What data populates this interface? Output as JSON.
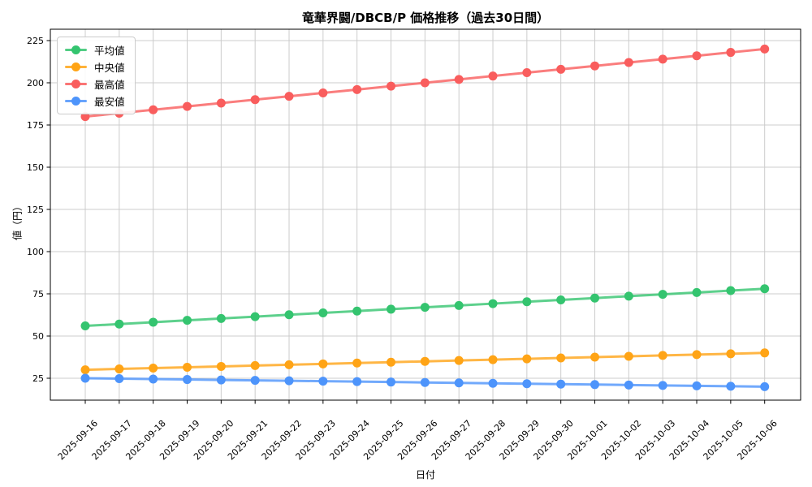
{
  "chart_data": {
    "type": "line",
    "title": "竜華界闘/DBCB/P 価格推移（過去30日間）",
    "xlabel": "日付",
    "ylabel": "値（円）",
    "grid": true,
    "legend_position": "upper-left",
    "axis_color": "#000000",
    "grid_color": "#cccccc",
    "background": "#ffffff",
    "y_ticks": [
      25,
      50,
      75,
      100,
      125,
      150,
      175,
      200,
      225
    ],
    "ylim": [
      12,
      232
    ],
    "x": [
      "2025-09-16",
      "2025-09-17",
      "2025-09-18",
      "2025-09-19",
      "2025-09-20",
      "2025-09-21",
      "2025-09-22",
      "2025-09-23",
      "2025-09-24",
      "2025-09-25",
      "2025-09-26",
      "2025-09-27",
      "2025-09-28",
      "2025-09-29",
      "2025-09-30",
      "2025-10-01",
      "2025-10-02",
      "2025-10-03",
      "2025-10-04",
      "2025-10-05",
      "2025-10-06"
    ],
    "series": [
      {
        "key": "avg",
        "name": "平均値",
        "color": "#34c46f",
        "values": [
          56.0,
          57.1,
          58.2,
          59.3,
          60.4,
          61.5,
          62.6,
          63.7,
          64.8,
          65.9,
          67.0,
          68.1,
          69.2,
          70.3,
          71.4,
          72.5,
          73.6,
          74.7,
          75.8,
          76.9,
          78.0
        ]
      },
      {
        "key": "median",
        "name": "中央値",
        "color": "#ffa416",
        "values": [
          30.0,
          30.5,
          31.0,
          31.5,
          32.0,
          32.5,
          33.0,
          33.5,
          34.0,
          34.5,
          35.0,
          35.5,
          36.0,
          36.5,
          37.0,
          37.5,
          38.0,
          38.5,
          39.0,
          39.5,
          40.0
        ]
      },
      {
        "key": "max",
        "name": "最高値",
        "color": "#f95d5d",
        "values": [
          180,
          182,
          184,
          186,
          188,
          190,
          192,
          194,
          196,
          198,
          200,
          202,
          204,
          206,
          208,
          210,
          212,
          214,
          216,
          218,
          220
        ]
      },
      {
        "key": "min",
        "name": "最安値",
        "color": "#4d94fb",
        "values": [
          25.0,
          24.75,
          24.5,
          24.25,
          24.0,
          23.75,
          23.5,
          23.25,
          23.0,
          22.75,
          22.5,
          22.25,
          22.0,
          21.75,
          21.5,
          21.25,
          21.0,
          20.75,
          20.5,
          20.25,
          20.0
        ]
      }
    ]
  }
}
